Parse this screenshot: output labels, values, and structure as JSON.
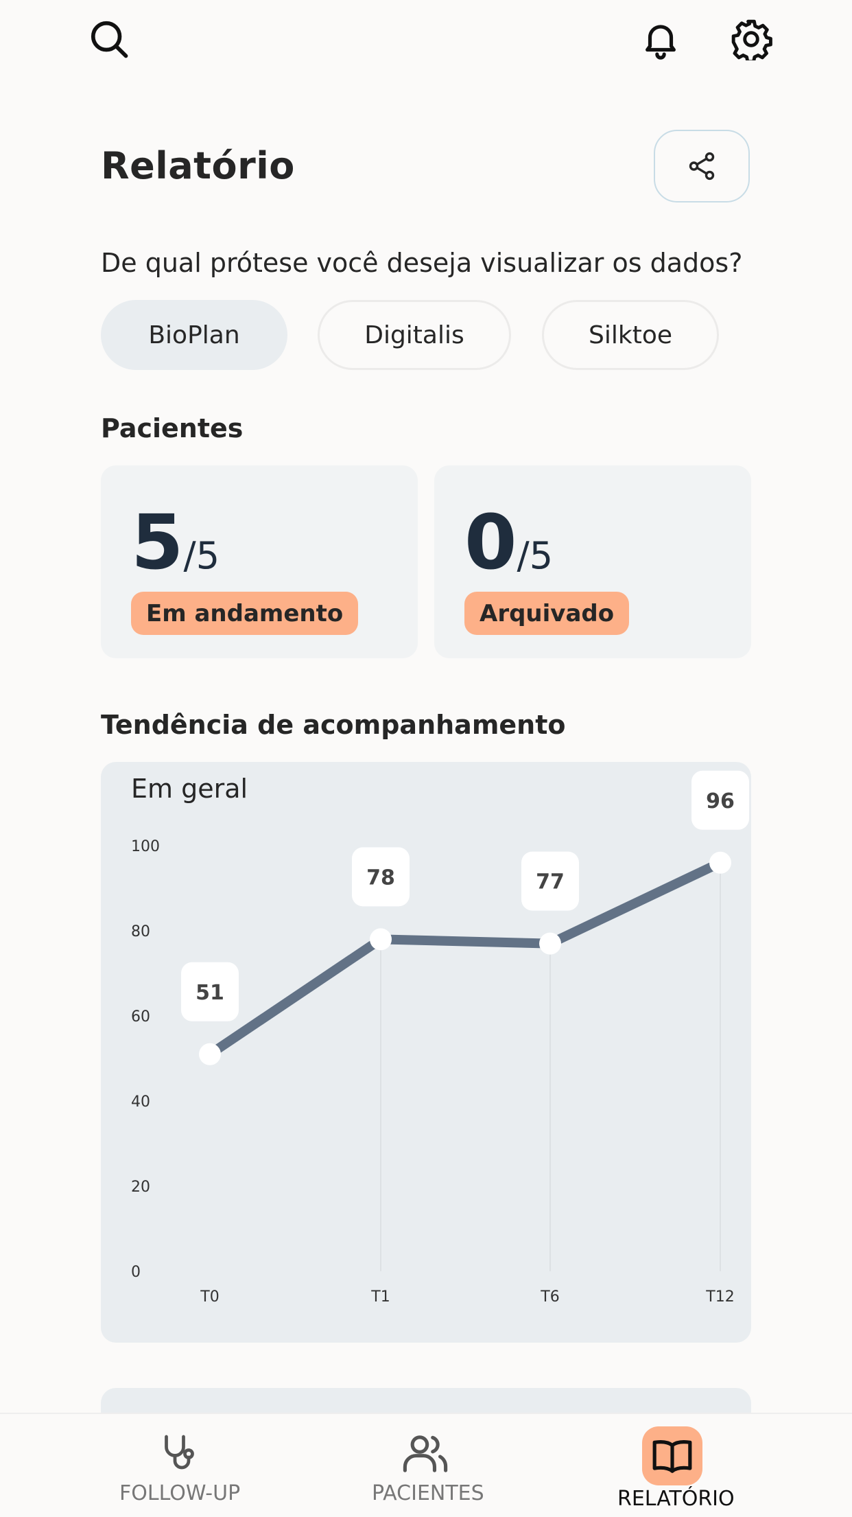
{
  "header": {
    "title": "Relatório",
    "question": "De qual prótese você deseja visualizar os dados?"
  },
  "icons": {
    "search": "search-icon",
    "notifications": "bell-icon",
    "settings": "gear-icon",
    "share": "share-icon"
  },
  "filters": [
    {
      "label": "BioPlan",
      "active": true
    },
    {
      "label": "Digitalis",
      "active": false
    },
    {
      "label": "Silktoe",
      "active": false
    }
  ],
  "patients": {
    "heading": "Pacientes",
    "cards": [
      {
        "value": "5",
        "total": "/5",
        "status": "Em andamento"
      },
      {
        "value": "0",
        "total": "/5",
        "status": "Arquivado"
      }
    ]
  },
  "trend": {
    "heading": "Tendência de acompanhamento"
  },
  "chart_data": {
    "type": "line",
    "title": "Em geral",
    "categories": [
      "T0",
      "T1",
      "T6",
      "T12"
    ],
    "values": [
      51,
      78,
      77,
      96
    ],
    "data_labels": [
      "51",
      "78",
      "77",
      "96"
    ],
    "yticks": [
      "0",
      "20",
      "40",
      "60",
      "80",
      "100"
    ],
    "ylim": [
      0,
      100
    ],
    "line_color": "#627286"
  },
  "nav": {
    "items": [
      {
        "label": "FOLLOW-UP",
        "icon": "stethoscope-icon",
        "active": false
      },
      {
        "label": "PACIENTES",
        "icon": "users-icon",
        "active": false
      },
      {
        "label": "RELATÓRIO",
        "icon": "book-icon",
        "active": true
      }
    ]
  },
  "colors": {
    "accent": "#fdb088",
    "dark": "#1f2d3d",
    "card": "#e9edf0"
  }
}
